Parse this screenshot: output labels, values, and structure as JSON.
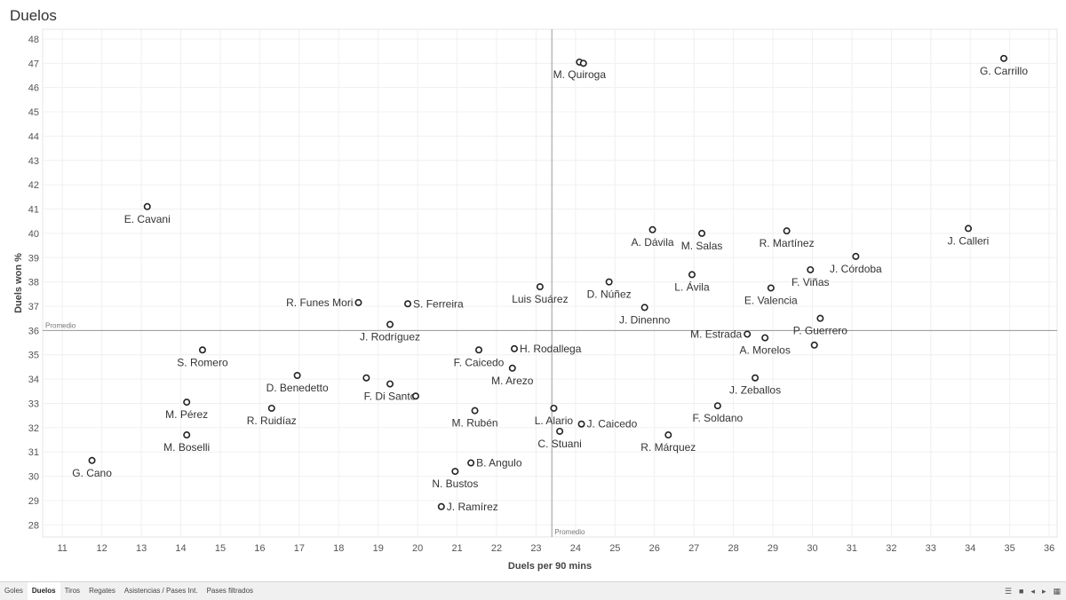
{
  "page": {
    "title": "Duelos"
  },
  "tabs": [
    {
      "label": "Goles",
      "active": false
    },
    {
      "label": "Duelos",
      "active": true
    },
    {
      "label": "Tiros",
      "active": false
    },
    {
      "label": "Regates",
      "active": false
    },
    {
      "label": "Asistencias / Pases Int.",
      "active": false
    },
    {
      "label": "Pases filtrados",
      "active": false
    }
  ],
  "tab_controls": [
    {
      "name": "list-view-icon",
      "glyph": "☰"
    },
    {
      "name": "grid-view-icon",
      "glyph": "■"
    },
    {
      "name": "prev-tab-icon",
      "glyph": "◂"
    },
    {
      "name": "next-tab-icon",
      "glyph": "▸"
    },
    {
      "name": "tiles-icon",
      "glyph": "▦"
    }
  ],
  "chart_data": {
    "type": "scatter",
    "xlabel": "Duels per 90 mins",
    "ylabel": "Duels won %",
    "xlim": [
      10.5,
      36.2
    ],
    "ylim": [
      27.5,
      48.4
    ],
    "xticks": [
      11,
      12,
      13,
      14,
      15,
      16,
      17,
      18,
      19,
      20,
      21,
      22,
      23,
      24,
      25,
      26,
      27,
      28,
      29,
      30,
      31,
      32,
      33,
      34,
      35,
      36
    ],
    "yticks": [
      28,
      29,
      30,
      31,
      32,
      33,
      34,
      35,
      36,
      37,
      38,
      39,
      40,
      41,
      42,
      43,
      44,
      45,
      46,
      47,
      48
    ],
    "reference_lines": {
      "x": {
        "value": 23.4,
        "label": "Promedio"
      },
      "y": {
        "value": 36.0,
        "label": "Promedio"
      }
    },
    "grid": true,
    "marker_color": "#222222",
    "points": [
      {
        "x": 34.85,
        "y": 47.2,
        "label": "G. Carrillo",
        "pos": "below"
      },
      {
        "x": 24.1,
        "y": 47.05,
        "label": "M. Quiroga",
        "pos": "below"
      },
      {
        "x": 24.2,
        "y": 47.0,
        "label": "",
        "pos": "none"
      },
      {
        "x": 13.15,
        "y": 41.1,
        "label": "E. Cavani",
        "pos": "below"
      },
      {
        "x": 33.95,
        "y": 40.2,
        "label": "J. Calleri",
        "pos": "below"
      },
      {
        "x": 25.95,
        "y": 40.15,
        "label": "A. Dávila",
        "pos": "below"
      },
      {
        "x": 29.35,
        "y": 40.1,
        "label": "R. Martínez",
        "pos": "below"
      },
      {
        "x": 27.2,
        "y": 40.0,
        "label": "M. Salas",
        "pos": "below"
      },
      {
        "x": 31.1,
        "y": 39.05,
        "label": "J. Córdoba",
        "pos": "below"
      },
      {
        "x": 29.95,
        "y": 38.5,
        "label": "F. Viñas",
        "pos": "below"
      },
      {
        "x": 26.95,
        "y": 38.3,
        "label": "L. Ávila",
        "pos": "below"
      },
      {
        "x": 24.85,
        "y": 38.0,
        "label": "D. Núñez",
        "pos": "below"
      },
      {
        "x": 28.95,
        "y": 37.75,
        "label": "E. Valencia",
        "pos": "below"
      },
      {
        "x": 23.1,
        "y": 37.8,
        "label": "Luis Suárez",
        "pos": "below"
      },
      {
        "x": 18.5,
        "y": 37.15,
        "label": "R. Funes Mori",
        "pos": "left"
      },
      {
        "x": 19.75,
        "y": 37.1,
        "label": "S. Ferreira",
        "pos": "right"
      },
      {
        "x": 25.75,
        "y": 36.95,
        "label": "J. Dinenno",
        "pos": "below"
      },
      {
        "x": 30.2,
        "y": 36.5,
        "label": "P. Guerrero",
        "pos": "below"
      },
      {
        "x": 19.3,
        "y": 36.25,
        "label": "J. Rodríguez",
        "pos": "below"
      },
      {
        "x": 28.35,
        "y": 35.85,
        "label": "M. Estrada",
        "pos": "left"
      },
      {
        "x": 28.8,
        "y": 35.7,
        "label": "A. Morelos",
        "pos": "below"
      },
      {
        "x": 30.05,
        "y": 35.4,
        "label": "",
        "pos": "none"
      },
      {
        "x": 14.55,
        "y": 35.2,
        "label": "S. Romero",
        "pos": "below"
      },
      {
        "x": 21.55,
        "y": 35.2,
        "label": "F. Caicedo",
        "pos": "below"
      },
      {
        "x": 22.45,
        "y": 35.25,
        "label": "H. Rodallega",
        "pos": "right"
      },
      {
        "x": 22.4,
        "y": 34.45,
        "label": "M. Arezo",
        "pos": "below"
      },
      {
        "x": 16.95,
        "y": 34.15,
        "label": "D. Benedetto",
        "pos": "below"
      },
      {
        "x": 18.7,
        "y": 34.05,
        "label": "",
        "pos": "none"
      },
      {
        "x": 28.55,
        "y": 34.05,
        "label": "J. Zeballos",
        "pos": "below"
      },
      {
        "x": 19.3,
        "y": 33.8,
        "label": "F. Di Santo",
        "pos": "below"
      },
      {
        "x": 19.95,
        "y": 33.3,
        "label": "",
        "pos": "none"
      },
      {
        "x": 14.15,
        "y": 33.05,
        "label": "M. Pérez",
        "pos": "below"
      },
      {
        "x": 27.6,
        "y": 32.9,
        "label": "F. Soldano",
        "pos": "below"
      },
      {
        "x": 16.3,
        "y": 32.8,
        "label": "R. Ruidíaz",
        "pos": "below"
      },
      {
        "x": 21.45,
        "y": 32.7,
        "label": "M. Rubén",
        "pos": "below"
      },
      {
        "x": 23.45,
        "y": 32.8,
        "label": "L. Alario",
        "pos": "below"
      },
      {
        "x": 24.15,
        "y": 32.15,
        "label": "J. Caicedo",
        "pos": "right"
      },
      {
        "x": 23.6,
        "y": 31.85,
        "label": "C. Stuani",
        "pos": "below"
      },
      {
        "x": 14.15,
        "y": 31.7,
        "label": "M. Boselli",
        "pos": "below"
      },
      {
        "x": 26.35,
        "y": 31.7,
        "label": "R. Márquez",
        "pos": "below"
      },
      {
        "x": 11.75,
        "y": 30.65,
        "label": "G. Cano",
        "pos": "below"
      },
      {
        "x": 21.35,
        "y": 30.55,
        "label": "B. Angulo",
        "pos": "right"
      },
      {
        "x": 20.95,
        "y": 30.2,
        "label": "N. Bustos",
        "pos": "below"
      },
      {
        "x": 20.6,
        "y": 28.75,
        "label": "J. Ramírez",
        "pos": "right"
      }
    ]
  }
}
